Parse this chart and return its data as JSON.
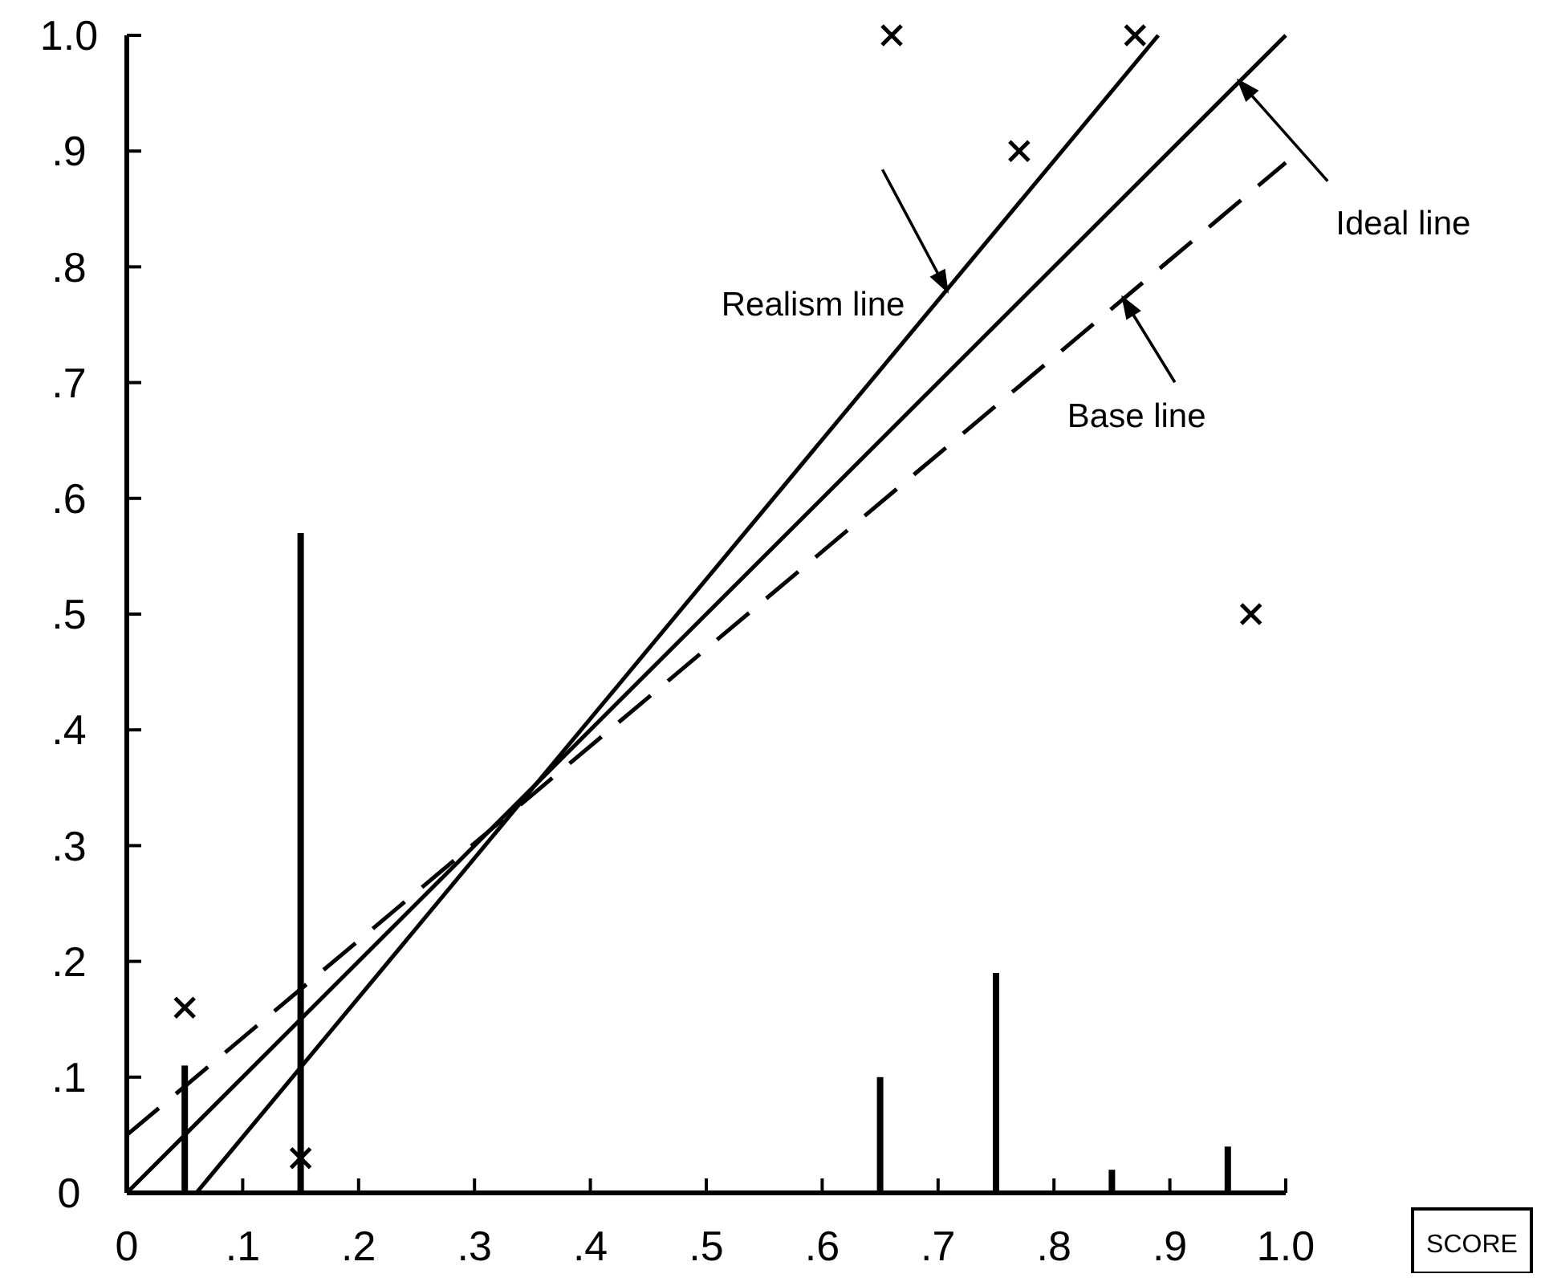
{
  "chart_data": {
    "type": "line",
    "xlabel": "SCORE",
    "xlim": [
      0,
      1
    ],
    "ylim": [
      0,
      1
    ],
    "xticks": [
      0,
      {
        "value": 0.1,
        "label": ".1"
      },
      {
        "value": 0.2,
        "label": ".2"
      },
      {
        "value": 0.3,
        "label": ".3"
      },
      {
        "value": 0.4,
        "label": ".4"
      },
      {
        "value": 0.5,
        "label": ".5"
      },
      {
        "value": 0.6,
        "label": ".6"
      },
      {
        "value": 0.7,
        "label": ".7"
      },
      {
        "value": 0.8,
        "label": ".8"
      },
      {
        "value": 0.9,
        "label": ".9"
      },
      {
        "value": 1,
        "label": "1.0"
      }
    ],
    "yticks": [
      0,
      {
        "value": 0.1,
        "label": ".1"
      },
      {
        "value": 0.2,
        "label": ".2"
      },
      {
        "value": 0.3,
        "label": ".3"
      },
      {
        "value": 0.4,
        "label": ".4"
      },
      {
        "value": 0.5,
        "label": ".5"
      },
      {
        "value": 0.6,
        "label": ".6"
      },
      {
        "value": 0.7,
        "label": ".7"
      },
      {
        "value": 0.8,
        "label": ".8"
      },
      {
        "value": 0.9,
        "label": ".9"
      },
      {
        "value": 1,
        "label": "1.0"
      }
    ],
    "grid": false,
    "legend": false,
    "series": [
      {
        "type": "bar",
        "color": "#000000",
        "x": [
          0.05,
          0.15,
          0.65,
          0.75,
          0.85,
          0.95
        ],
        "values": [
          0.11,
          0.57,
          0.1,
          0.19,
          0.02,
          0.04
        ]
      },
      {
        "type": "scatter",
        "color": "#000000",
        "marker": "cross",
        "x": [
          0.05,
          0.15,
          0.66,
          0.77,
          0.87,
          0.97
        ],
        "values": [
          0.16,
          0.03,
          1.0,
          0.9,
          1.0,
          0.5
        ]
      },
      {
        "name": "Realism line",
        "color": "#000000",
        "line_style": "solid",
        "x": [
          0.06,
          0.89
        ],
        "values": [
          0,
          1
        ]
      },
      {
        "name": "Ideal line",
        "color": "#000000",
        "line_style": "solid",
        "x": [
          0,
          1
        ],
        "values": [
          0,
          1
        ]
      },
      {
        "name": "Base line",
        "color": "#000000",
        "line_style": "dashed",
        "x": [
          0,
          1
        ],
        "values": [
          0.05,
          0.89
        ]
      }
    ]
  }
}
